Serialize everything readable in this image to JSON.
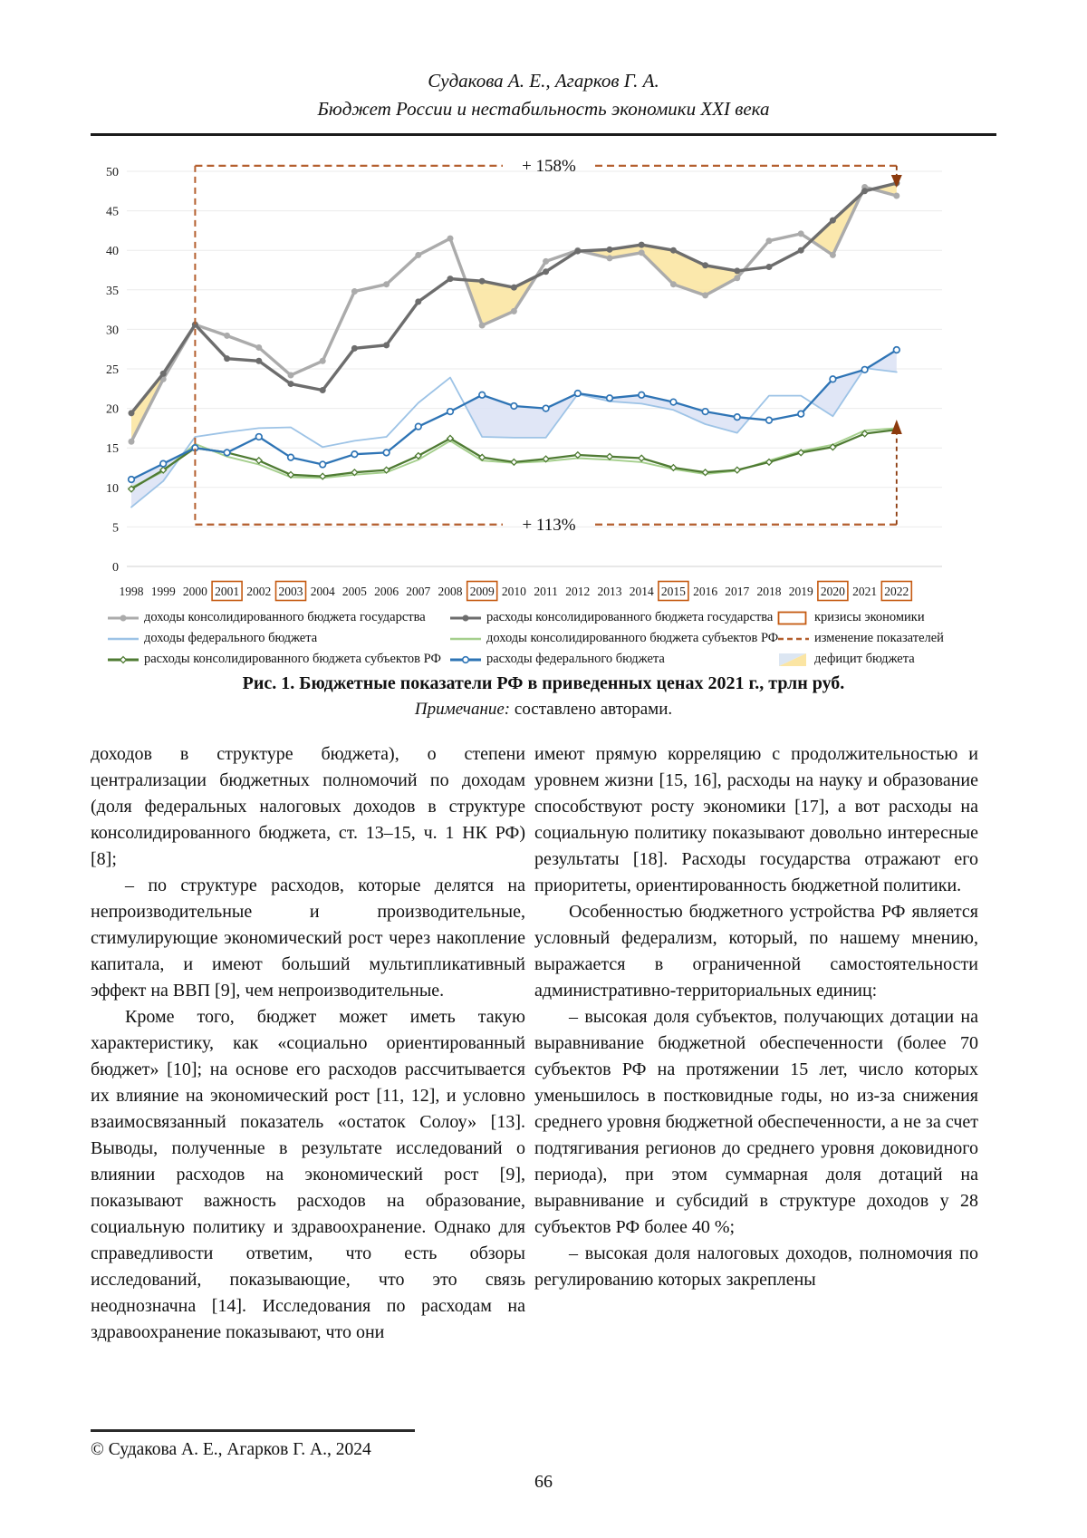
{
  "header": {
    "authors": "Судакова А. Е., Агарков Г. А.",
    "title": "Бюджет России и нестабильность экономики XXI века"
  },
  "figure": {
    "caption": "Рис. 1. Бюджетные показатели РФ в приведенных ценах 2021 г., трлн руб.",
    "note_label": "Примечание:",
    "note_text": " составлено авторами."
  },
  "chart_data": {
    "type": "line",
    "title": "Бюджетные показатели РФ в приведенных ценах 2021 г., трлн руб.",
    "x": [
      "1998",
      "1999",
      "2000",
      "2001",
      "2002",
      "2003",
      "2004",
      "2005",
      "2006",
      "2007",
      "2008",
      "2009",
      "2010",
      "2011",
      "2012",
      "2013",
      "2014",
      "2015",
      "2016",
      "2017",
      "2018",
      "2019",
      "2020",
      "2021",
      "2022"
    ],
    "ylim": [
      0,
      50
    ],
    "ytick": 5,
    "grid": "horizontal",
    "crisis_years": [
      "2001",
      "2003",
      "2009",
      "2015",
      "2020",
      "2022"
    ],
    "colors": {
      "crisis": "#c55a11"
    },
    "series": [
      {
        "name": "доходы консолидированного бюджета государства",
        "color": "#ababab",
        "width": 3.4,
        "marker": "dot",
        "values": [
          15.8,
          23.7,
          30.6,
          29.2,
          27.7,
          24.2,
          26.0,
          34.8,
          35.7,
          39.4,
          41.5,
          30.5,
          32.3,
          38.6,
          40.0,
          39.0,
          39.7,
          35.7,
          34.3,
          36.5,
          41.2,
          42.1,
          39.4,
          48.0,
          46.9
        ]
      },
      {
        "name": "расходы консолидированного бюджета государства",
        "color": "#6d6d6d",
        "width": 3.4,
        "marker": "dot",
        "values": [
          19.4,
          24.4,
          30.6,
          26.3,
          26.0,
          23.1,
          22.3,
          27.6,
          28.0,
          33.5,
          36.4,
          36.1,
          35.3,
          37.3,
          39.9,
          40.1,
          40.7,
          40.0,
          38.1,
          37.4,
          37.9,
          40.0,
          43.8,
          47.5,
          48.5
        ]
      },
      {
        "name": "доходы федерального бюджета",
        "color": "#9dc3e6",
        "width": 1.8,
        "marker": "none",
        "values": [
          7.5,
          10.8,
          16.4,
          17.0,
          17.5,
          17.6,
          15.1,
          15.9,
          16.4,
          20.7,
          23.9,
          16.4,
          16.3,
          16.3,
          21.8,
          20.9,
          20.6,
          19.8,
          18.0,
          16.9,
          21.6,
          21.6,
          19.0,
          25.1,
          24.6
        ]
      },
      {
        "name": "доходы консолидированного бюджета субъектов РФ",
        "color": "#a5cf8d",
        "width": 1.9,
        "marker": "none",
        "values": [
          10.0,
          12.0,
          15.5,
          13.9,
          12.9,
          11.3,
          11.2,
          11.6,
          11.9,
          13.5,
          15.9,
          13.4,
          13.1,
          13.3,
          13.7,
          13.5,
          13.2,
          12.3,
          11.7,
          12.1,
          13.4,
          14.6,
          15.4,
          17.2,
          17.5
        ]
      },
      {
        "name": "расходы консолидированного бюджета субъектов РФ",
        "color": "#4f7b33",
        "width": 2.3,
        "marker": "diamond-open",
        "values": [
          9.8,
          12.2,
          15.0,
          14.4,
          13.4,
          11.6,
          11.4,
          11.9,
          12.2,
          14.0,
          16.2,
          13.8,
          13.2,
          13.6,
          14.1,
          13.9,
          13.7,
          12.5,
          11.9,
          12.2,
          13.2,
          14.4,
          15.1,
          16.8,
          17.3
        ]
      },
      {
        "name": "расходы федерального бюджета",
        "color": "#2e74b5",
        "width": 2.3,
        "marker": "circle-open",
        "values": [
          11.0,
          13.0,
          15.0,
          14.4,
          16.4,
          13.8,
          12.9,
          14.2,
          14.4,
          17.7,
          19.6,
          21.7,
          20.3,
          20.0,
          21.9,
          21.3,
          21.7,
          20.8,
          19.6,
          18.9,
          18.5,
          19.3,
          23.7,
          24.9,
          27.4
        ]
      }
    ],
    "fills": [
      {
        "upper": 1,
        "lower": 0,
        "color": "#fbe5a3",
        "name": "дефицит бюджета государства"
      },
      {
        "upper": 5,
        "lower": 2,
        "color": "#dde3f5",
        "name": "дефицит федерального бюджета"
      }
    ],
    "annotations": {
      "from_year": "2000",
      "color": "#b45f2e",
      "arrow_color": "#8c3a0d",
      "top": {
        "label": "+ 158%",
        "y": 50.7
      },
      "bottom": {
        "label": "+ 113%",
        "y": 5.3
      }
    },
    "legend": {
      "entries": [
        {
          "swatch": "line-dot",
          "color": "#ababab",
          "label": "доходы консолидированного бюджета государства"
        },
        {
          "swatch": "line",
          "color": "#9dc3e6",
          "label": "доходы федерального бюджета"
        },
        {
          "swatch": "line-diamond",
          "color": "#4f7b33",
          "label": "расходы консолидированного бюджета субъектов РФ"
        },
        {
          "swatch": "line-dot",
          "color": "#6d6d6d",
          "label": "расходы консолидированного бюджета государства"
        },
        {
          "swatch": "line",
          "color": "#a5cf8d",
          "label": "доходы консолидированного бюджета субъектов РФ"
        },
        {
          "swatch": "line-circle",
          "color": "#2e74b5",
          "label": "расходы федерального бюджета"
        },
        {
          "swatch": "box",
          "color": "#c55a11",
          "label": "кризисы экономики"
        },
        {
          "swatch": "dash",
          "color": "#b45f2e",
          "label": "изменение показателей"
        },
        {
          "swatch": "deficit",
          "color": "#fbe5a3",
          "color2": "#dce6f2",
          "label": "дефицит бюджета"
        }
      ]
    }
  },
  "body": {
    "left": [
      "доходов в структуре бюджета), о степени централизации бюджетных полномочий по доходам (доля федеральных налоговых доходов в структуре консолидированного бюджета, ст. 13–15, ч. 1 НК РФ) [8];",
      "–  по структуре расходов, которые делятся на непроизводительные и производительные, стимулирующие экономический рост через накопление капитала, и имеют больший мультипликативный эффект на ВВП [9], чем непроизводительные.",
      "Кроме того, бюджет может иметь такую характеристику, как «социально ориентированный бюджет» [10]; на основе его расходов рассчитывается их влияние на экономический рост [11, 12], и условно взаимосвязанный показатель «остаток Солоу» [13]. Выводы, полученные в результате исследований о влиянии расходов на экономический рост [9], показывают важность расходов на образование, социальную политику и здравоохранение. Однако для справедливости ответим, что есть обзоры исследований, показывающие, что это связь неоднозначна [14]. Исследования по расходам на здравоохранение показывают, что они"
    ],
    "right": [
      "имеют прямую корреляцию с продолжительностью и уровнем жизни [15, 16], расходы на науку и образование способствуют росту экономики [17], а вот расходы на социальную политику показывают довольно интересные результаты [18]. Расходы государства отражают его приоритеты, ориентированность бюджетной политики.",
      "Особенностью бюджетного устройства РФ является условный федерализм, который, по нашему мнению, выражается в ограниченной самостоятельности административно-территориальных единиц:",
      "–  высокая доля субъектов, получающих дотации на выравнивание бюджетной обеспеченности (более 70 субъектов РФ на протяжении 15 лет, число которых уменьшилось в постковидные годы, но из-за снижения среднего уровня бюджетной обеспеченности, а не за счет подтягивания регионов до среднего уровня доковидного периода), при этом суммарная доля дотаций на выравнивание и субсидий в структуре доходов у 28 субъектов РФ более 40 %;",
      "–  высокая доля налоговых доходов, полномочия по регулированию которых закреплены"
    ]
  },
  "footer": {
    "copyright": "© Судакова А. Е., Агарков Г. А., 2024",
    "page_number": "66"
  }
}
